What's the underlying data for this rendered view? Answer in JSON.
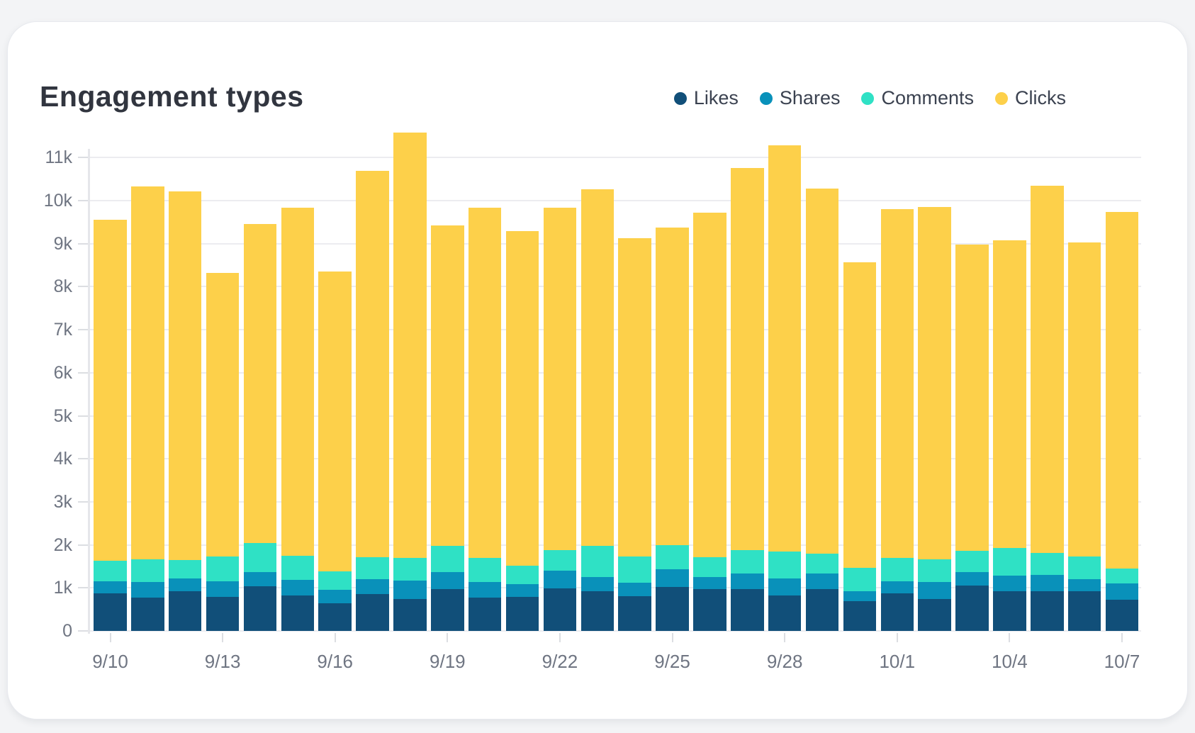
{
  "card": {
    "title": "Engagement types"
  },
  "legend": {
    "items": [
      {
        "label": "Likes",
        "color": "#114f79"
      },
      {
        "label": "Shares",
        "color": "#0991ba"
      },
      {
        "label": "Comments",
        "color": "#2fe1c5"
      },
      {
        "label": "Clicks",
        "color": "#fdd04a"
      }
    ]
  },
  "chart_data": {
    "type": "bar",
    "stacked": true,
    "title": "Engagement types",
    "xlabel": "",
    "ylabel": "",
    "grid": "horizontal",
    "legend_position": "top-right",
    "ylim": [
      0,
      11860
    ],
    "y_tick_labels": [
      "0",
      "1k",
      "2k",
      "3k",
      "4k",
      "5k",
      "6k",
      "7k",
      "8k",
      "9k",
      "10k",
      "11k"
    ],
    "y_tick_values": [
      0,
      1000,
      2000,
      3000,
      4000,
      5000,
      6000,
      7000,
      8000,
      9000,
      10000,
      11000
    ],
    "x_tick_labels": [
      "9/10",
      "9/13",
      "9/16",
      "9/19",
      "9/22",
      "9/25",
      "9/28",
      "10/1",
      "10/4",
      "10/7"
    ],
    "categories": [
      "9/10",
      "9/11",
      "9/12",
      "9/13",
      "9/14",
      "9/15",
      "9/16",
      "9/17",
      "9/18",
      "9/19",
      "9/20",
      "9/21",
      "9/22",
      "9/23",
      "9/24",
      "9/25",
      "9/26",
      "9/27",
      "9/28",
      "9/29",
      "9/30",
      "10/1",
      "10/2",
      "10/3",
      "10/4",
      "10/5",
      "10/6",
      "10/7"
    ],
    "series": [
      {
        "name": "Likes",
        "color": "#114f79",
        "values": [
          870,
          780,
          930,
          790,
          1040,
          830,
          640,
          850,
          740,
          970,
          770,
          790,
          990,
          920,
          810,
          1020,
          980,
          980,
          820,
          980,
          700,
          880,
          740,
          1060,
          920,
          920,
          920,
          720
        ]
      },
      {
        "name": "Shares",
        "color": "#0991ba",
        "values": [
          280,
          350,
          290,
          360,
          330,
          360,
          310,
          360,
          430,
          390,
          370,
          290,
          410,
          330,
          310,
          420,
          280,
          350,
          400,
          350,
          230,
          280,
          400,
          310,
          360,
          380,
          290,
          390
        ]
      },
      {
        "name": "Comments",
        "color": "#2fe1c5",
        "values": [
          480,
          530,
          430,
          580,
          680,
          560,
          430,
          510,
          530,
          610,
          550,
          440,
          480,
          730,
          610,
          560,
          460,
          550,
          620,
          460,
          540,
          540,
          520,
          490,
          640,
          520,
          520,
          340
        ]
      },
      {
        "name": "Clicks",
        "color": "#fdd04a",
        "values": [
          7920,
          8670,
          8560,
          6590,
          7410,
          8090,
          6970,
          8980,
          9890,
          7450,
          8150,
          7770,
          7960,
          8290,
          7400,
          7370,
          8000,
          8880,
          9440,
          8490,
          7100,
          8110,
          8200,
          7120,
          7160,
          8530,
          7300,
          8280
        ]
      }
    ],
    "totals": [
      9550,
      10330,
      10210,
      8320,
      9460,
      9840,
      8350,
      10700,
      11590,
      9420,
      9840,
      9290,
      9840,
      10270,
      9130,
      9370,
      9720,
      10760,
      11280,
      10280,
      8570,
      9810,
      9860,
      8980,
      9080,
      10350,
      9030,
      9730
    ]
  }
}
